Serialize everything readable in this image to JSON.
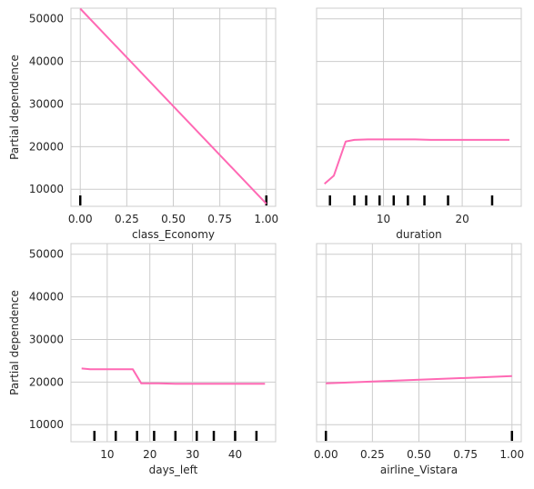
{
  "colors": {
    "line": "#ff69b4",
    "grid": "#cccccc",
    "spine": "#cccccc",
    "rug": "#000000",
    "background": "#ffffff",
    "text": "#262626"
  },
  "chart_data": [
    {
      "type": "line",
      "title": "",
      "xlabel": "class_Economy",
      "ylabel": "Partial dependence",
      "xlim": [
        -0.05,
        1.05
      ],
      "ylim": [
        6000,
        52500
      ],
      "xticks": [
        "0.00",
        "0.25",
        "0.50",
        "0.75",
        "1.00"
      ],
      "xtick_values": [
        0,
        0.25,
        0.5,
        0.75,
        1.0
      ],
      "yticks": [
        "10000",
        "20000",
        "30000",
        "40000",
        "50000"
      ],
      "ytick_values": [
        10000,
        20000,
        30000,
        40000,
        50000
      ],
      "grid": true,
      "series": [
        {
          "x": [
            0,
            1
          ],
          "y": [
            52400,
            6600
          ]
        }
      ],
      "rug": [
        0,
        1
      ]
    },
    {
      "type": "line",
      "title": "",
      "xlabel": "duration",
      "ylabel": "",
      "xlim": [
        1.5,
        27.5
      ],
      "ylim": [
        6000,
        52500
      ],
      "xticks": [
        "10",
        "20"
      ],
      "xtick_values": [
        10,
        20
      ],
      "yticks": [
        "10000",
        "20000",
        "30000",
        "40000",
        "50000"
      ],
      "ytick_values": [
        10000,
        20000,
        30000,
        40000,
        50000
      ],
      "show_yticklabels": false,
      "grid": true,
      "series": [
        {
          "x": [
            2.5,
            3.7,
            5.2,
            6.3,
            8,
            10,
            12,
            14,
            16,
            18,
            20,
            22,
            24,
            26
          ],
          "y": [
            11300,
            13200,
            21200,
            21600,
            21700,
            21700,
            21700,
            21700,
            21600,
            21600,
            21600,
            21600,
            21600,
            21600
          ]
        }
      ],
      "rug": [
        3.2,
        6.3,
        7.8,
        9.5,
        11.3,
        13.1,
        15.2,
        18.2,
        23.8
      ]
    },
    {
      "type": "line",
      "title": "",
      "xlabel": "days_left",
      "ylabel": "Partial dependence",
      "xlim": [
        1.5,
        49.5
      ],
      "ylim": [
        6000,
        52500
      ],
      "xticks": [
        "10",
        "20",
        "30",
        "40"
      ],
      "xtick_values": [
        10,
        20,
        30,
        40
      ],
      "yticks": [
        "10000",
        "20000",
        "30000",
        "40000",
        "50000"
      ],
      "ytick_values": [
        10000,
        20000,
        30000,
        40000,
        50000
      ],
      "grid": true,
      "series": [
        {
          "x": [
            4,
            6,
            10,
            14,
            16,
            18,
            22,
            26,
            30,
            35,
            40,
            45,
            47
          ],
          "y": [
            23200,
            23000,
            23000,
            23000,
            23000,
            19700,
            19700,
            19600,
            19600,
            19600,
            19600,
            19600,
            19600
          ]
        }
      ],
      "rug": [
        7,
        12,
        17,
        21,
        26,
        31,
        35,
        40,
        45
      ]
    },
    {
      "type": "line",
      "title": "",
      "xlabel": "airline_Vistara",
      "ylabel": "",
      "xlim": [
        -0.05,
        1.05
      ],
      "ylim": [
        6000,
        52500
      ],
      "xticks": [
        "0.00",
        "0.25",
        "0.50",
        "0.75",
        "1.00"
      ],
      "xtick_values": [
        0,
        0.25,
        0.5,
        0.75,
        1.0
      ],
      "yticks": [
        "10000",
        "20000",
        "30000",
        "40000",
        "50000"
      ],
      "ytick_values": [
        10000,
        20000,
        30000,
        40000,
        50000
      ],
      "show_yticklabels": false,
      "grid": true,
      "series": [
        {
          "x": [
            0,
            1
          ],
          "y": [
            19700,
            21400
          ]
        }
      ],
      "rug": [
        0,
        1
      ]
    }
  ]
}
